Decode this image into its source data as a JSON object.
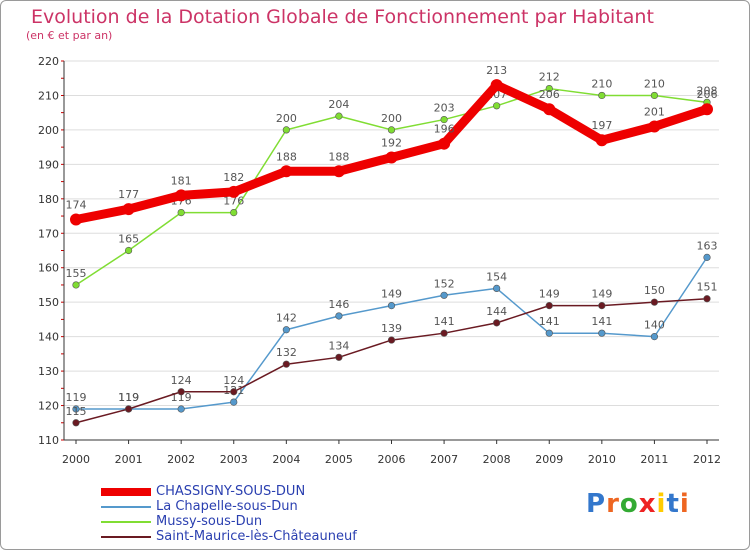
{
  "header": {
    "title": "Evolution de la Dotation Globale de Fonctionnement par Habitant",
    "subtitle": "(en € et par an)"
  },
  "chart_data": {
    "type": "line",
    "title": "Evolution de la Dotation Globale de Fonctionnement par Habitant",
    "subtitle": "(en € et par an)",
    "xlabel": "",
    "ylabel": "",
    "x": [
      2000,
      2001,
      2002,
      2003,
      2004,
      2005,
      2006,
      2007,
      2008,
      2009,
      2010,
      2011,
      2012
    ],
    "ylim": [
      110,
      220
    ],
    "yticks": [
      110,
      120,
      130,
      140,
      150,
      160,
      170,
      180,
      190,
      200,
      210,
      220
    ],
    "grid": "horizontal",
    "legend_position": "bottom-left",
    "series": [
      {
        "name": "Mussy-sous-Dun",
        "color": "#80dd33",
        "emphasis": false,
        "values": [
          155,
          165,
          176,
          176,
          200,
          204,
          200,
          203,
          207,
          212,
          210,
          210,
          208
        ]
      },
      {
        "name": "La Chapelle-sous-Dun",
        "color": "#5599cc",
        "emphasis": false,
        "values": [
          119,
          119,
          119,
          121,
          142,
          146,
          149,
          152,
          154,
          141,
          141,
          140,
          163
        ]
      },
      {
        "name": "Saint-Maurice-lès-Châteauneuf",
        "color": "#6a1a22",
        "emphasis": false,
        "values": [
          115,
          119,
          124,
          124,
          132,
          134,
          139,
          141,
          144,
          149,
          149,
          150,
          151
        ]
      },
      {
        "name": "CHASSIGNY-SOUS-DUN",
        "color": "#ee0000",
        "emphasis": true,
        "values": [
          174,
          177,
          181,
          182,
          188,
          188,
          192,
          196,
          213,
          206,
          197,
          201,
          206
        ]
      }
    ]
  },
  "legend": [
    {
      "label": "CHASSIGNY-SOUS-DUN",
      "color": "#ee0000",
      "emphasis": true
    },
    {
      "label": "La Chapelle-sous-Dun",
      "color": "#5599cc",
      "emphasis": false
    },
    {
      "label": "Mussy-sous-Dun",
      "color": "#80dd33",
      "emphasis": false
    },
    {
      "label": "Saint-Maurice-lès-Châteauneuf",
      "color": "#6a1a22",
      "emphasis": false
    }
  ],
  "logo": {
    "letters": [
      "P",
      "r",
      "o",
      "x",
      "i",
      "t",
      "i"
    ],
    "colors": [
      "#3377cc",
      "#ee6622",
      "#33aa33",
      "#ee2222",
      "#ffcc00",
      "#3377cc",
      "#ee6622"
    ]
  }
}
